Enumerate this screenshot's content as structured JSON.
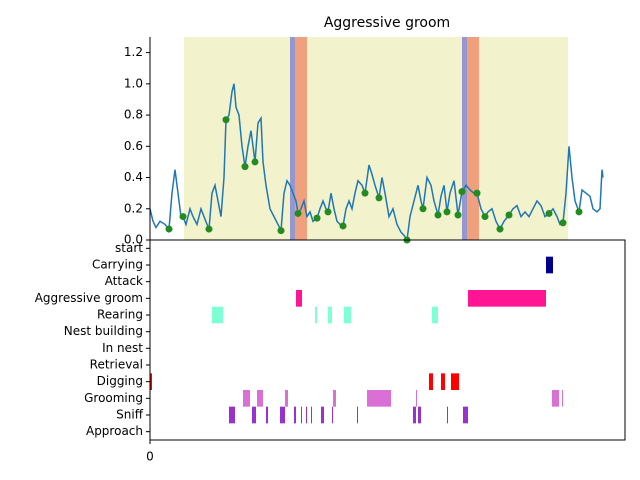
{
  "chart_data": [
    {
      "type": "line",
      "title": "Aggressive groom",
      "color": "#1f77b4",
      "x": [
        0,
        3,
        6,
        10,
        15,
        19,
        22,
        25,
        28,
        31,
        33,
        36,
        40,
        43,
        47,
        51,
        54,
        57,
        59,
        62,
        65,
        68,
        71,
        74,
        76,
        79,
        82,
        84,
        86,
        89,
        92,
        95,
        98,
        101,
        105,
        108,
        111,
        113,
        116,
        120,
        124,
        128,
        131,
        134,
        137,
        140,
        143,
        146,
        148,
        151,
        154,
        157,
        160,
        163,
        167,
        170,
        173,
        176,
        178,
        181,
        184,
        187,
        190,
        193,
        196,
        199,
        202,
        205,
        208,
        212,
        215,
        219,
        222,
        225,
        229,
        232,
        235,
        239,
        243,
        247,
        251,
        254,
        257,
        260,
        264,
        268,
        271,
        273,
        277,
        281,
        284,
        288,
        291,
        294,
        297,
        300,
        304,
        308,
        312,
        316,
        320,
        324,
        327,
        331,
        335,
        338,
        342,
        346,
        350,
        354,
        359,
        363,
        367,
        371,
        375,
        379,
        383,
        387,
        391,
        395,
        399,
        403,
        407,
        410,
        413,
        416,
        419,
        422,
        425,
        429,
        432,
        436,
        440,
        443,
        447,
        450,
        452,
        453
      ],
      "values": [
        0.2,
        0.12,
        0.08,
        0.12,
        0.1,
        0.07,
        0.3,
        0.45,
        0.3,
        0.15,
        0.15,
        0.1,
        0.2,
        0.15,
        0.1,
        0.2,
        0.15,
        0.1,
        0.07,
        0.3,
        0.35,
        0.25,
        0.15,
        0.4,
        0.77,
        0.8,
        0.95,
        1.0,
        0.85,
        0.8,
        0.6,
        0.47,
        0.6,
        0.7,
        0.5,
        0.75,
        0.78,
        0.5,
        0.35,
        0.2,
        0.15,
        0.1,
        0.06,
        0.3,
        0.38,
        0.35,
        0.3,
        0.25,
        0.17,
        0.2,
        0.25,
        0.15,
        0.18,
        0.12,
        0.14,
        0.2,
        0.25,
        0.2,
        0.18,
        0.3,
        0.2,
        0.12,
        0.1,
        0.09,
        0.2,
        0.25,
        0.2,
        0.3,
        0.38,
        0.35,
        0.3,
        0.48,
        0.42,
        0.35,
        0.27,
        0.4,
        0.3,
        0.15,
        0.2,
        0.1,
        0.05,
        0.03,
        0,
        0.15,
        0.25,
        0.35,
        0.25,
        0.2,
        0.4,
        0.35,
        0.25,
        0.16,
        0.28,
        0.35,
        0.18,
        0.3,
        0.38,
        0.16,
        0.31,
        0.35,
        0.32,
        0.3,
        0.3,
        0.2,
        0.15,
        0.18,
        0.2,
        0.12,
        0.07,
        0.12,
        0.16,
        0.2,
        0.22,
        0.15,
        0.18,
        0.15,
        0.2,
        0.25,
        0.22,
        0.15,
        0.17,
        0.2,
        0.15,
        0.1,
        0.11,
        0.3,
        0.6,
        0.4,
        0.25,
        0.18,
        0.32,
        0.3,
        0.28,
        0.2,
        0.18,
        0.2,
        0.45,
        0.4
      ],
      "points": {
        "color": "#228b22",
        "x": [
          19,
          33,
          59,
          76,
          95,
          105,
          131,
          148,
          167,
          178,
          193,
          215,
          229,
          257,
          273,
          288,
          297,
          308,
          312,
          327,
          335,
          350,
          359,
          399,
          413,
          429
        ],
        "values": [
          0.07,
          0.15,
          0.07,
          0.77,
          0.47,
          0.5,
          0.06,
          0.17,
          0.14,
          0.18,
          0.09,
          0.3,
          0.27,
          0,
          0.2,
          0.16,
          0.18,
          0.16,
          0.31,
          0.3,
          0.15,
          0.07,
          0.16,
          0.17,
          0.11,
          0.18
        ]
      },
      "spans": [
        {
          "start": 34,
          "end": 140,
          "color": "#f2f2cc"
        },
        {
          "start": 140,
          "end": 145,
          "color": "#9797cf"
        },
        {
          "start": 145,
          "end": 157,
          "color": "#f0a07c"
        },
        {
          "start": 157,
          "end": 312,
          "color": "#f2f2cc"
        },
        {
          "start": 312,
          "end": 317,
          "color": "#9797cf"
        },
        {
          "start": 317,
          "end": 329,
          "color": "#f0a07c"
        },
        {
          "start": 329,
          "end": 418,
          "color": "#f2f2cc"
        }
      ],
      "xlim": [
        0,
        475
      ],
      "ylim": [
        0,
        1.3
      ],
      "yticks": [
        {
          "value": 0,
          "label": "0.0"
        },
        0.2,
        0.4,
        0.6,
        0.8,
        {
          "value": 1,
          "label": "1.0"
        },
        1.2
      ]
    },
    {
      "type": "ethogram",
      "xlim": [
        0,
        475
      ],
      "xticks": [
        0
      ],
      "rows": [
        {
          "label": "start"
        },
        {
          "label": "Carrying",
          "color": "#00008b",
          "intervals": [
            [
              396,
              403
            ]
          ]
        },
        {
          "label": "Attack"
        },
        {
          "label": "Aggressive groom",
          "color": "#ff1493",
          "intervals": [
            [
              146,
              152
            ],
            [
              318,
              396
            ]
          ]
        },
        {
          "label": "Rearing",
          "color": "#7fffd4",
          "intervals": [
            [
              62,
              73
            ],
            [
              165,
              167
            ],
            [
              178,
              182
            ],
            [
              194,
              201
            ],
            [
              282,
              288
            ]
          ]
        },
        {
          "label": "Nest building"
        },
        {
          "label": "In nest"
        },
        {
          "label": "Retrieval"
        },
        {
          "label": "Digging",
          "color": "#ff0000",
          "intervals": [
            [
              0,
              2
            ],
            [
              279,
              283
            ],
            [
              291,
              295
            ],
            [
              301,
              309
            ]
          ]
        },
        {
          "label": "Grooming",
          "color": "#da70d6",
          "intervals": [
            [
              93,
              100
            ],
            [
              107,
              113
            ],
            [
              135,
              138
            ],
            [
              183,
              186
            ],
            [
              217,
              241
            ],
            [
              266,
              267
            ],
            [
              402,
              409
            ],
            [
              412,
              413
            ]
          ]
        },
        {
          "label": "Sniff",
          "color": "#9932cc",
          "intervals": [
            [
              79,
              85
            ],
            [
              102,
              106
            ],
            [
              116,
              118
            ],
            [
              130,
              135
            ],
            [
              144,
              146
            ],
            [
              151,
              152
            ],
            [
              156,
              157
            ],
            [
              161,
              162
            ],
            [
              171,
              174
            ],
            [
              182,
              183
            ],
            [
              207,
              208
            ],
            [
              263,
              266
            ],
            [
              268,
              271
            ],
            [
              297,
              298
            ],
            [
              313,
              318
            ]
          ]
        },
        {
          "label": "Approach"
        }
      ]
    }
  ]
}
